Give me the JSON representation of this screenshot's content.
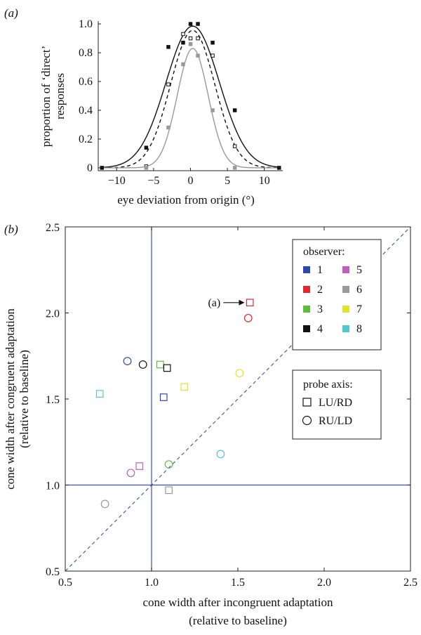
{
  "chart_data": [
    {
      "panel_label": "(a)",
      "type": "line",
      "xlabel": "eye deviation from origin (°)",
      "ylabel_lines": [
        "proportion of ‘direct’",
        "responses"
      ],
      "xlim": [
        -12.5,
        12.5
      ],
      "ylim": [
        -0.02,
        1.02
      ],
      "xticks": [
        -10,
        -5,
        0,
        5,
        10
      ],
      "xtick_labels": [
        "−10",
        "−5",
        "0",
        "5",
        "10"
      ],
      "yticks": [
        0,
        0.2,
        0.4,
        0.6,
        0.8,
        1.0
      ],
      "ytick_labels": [
        "0",
        "0.2",
        "0.4",
        "0.6",
        "0.8",
        "1.0"
      ],
      "curves": [
        {
          "style": "solid",
          "color": "#111111",
          "amplitude": 0.985,
          "mean": 0.3,
          "sd": 3.6
        },
        {
          "style": "dashed",
          "color": "#111111",
          "amplitude": 0.955,
          "mean": 0.3,
          "sd": 3.0
        },
        {
          "style": "solid",
          "color": "#999999",
          "amplitude": 0.83,
          "mean": 0.3,
          "sd": 2.1
        }
      ],
      "series": [
        {
          "marker": "filled-square",
          "color": "#111111",
          "points": [
            [
              -12,
              0
            ],
            [
              -6,
              0.14
            ],
            [
              -3,
              0.84
            ],
            [
              -1,
              0.87
            ],
            [
              0,
              1.0
            ],
            [
              1,
              1.0
            ],
            [
              3,
              0.87
            ],
            [
              6,
              0.4
            ],
            [
              12,
              0
            ]
          ]
        },
        {
          "marker": "open-square",
          "color": "#111111",
          "points": [
            [
              -6,
              0.01
            ],
            [
              -3,
              0.58
            ],
            [
              -1,
              0.93
            ],
            [
              0,
              0.9
            ],
            [
              1,
              0.9
            ],
            [
              3,
              0.78
            ],
            [
              6,
              0.15
            ]
          ]
        },
        {
          "marker": "filled-square",
          "color": "#999999",
          "points": [
            [
              -6,
              0.0
            ],
            [
              -3,
              0.28
            ],
            [
              -1,
              0.72
            ],
            [
              0,
              0.86
            ],
            [
              1,
              0.78
            ],
            [
              3,
              0.4
            ],
            [
              6,
              0.0
            ]
          ]
        }
      ]
    },
    {
      "panel_label": "(b)",
      "type": "scatter",
      "xlabel_lines": [
        "cone width after incongruent adaptation",
        "(relative to baseline)"
      ],
      "ylabel_lines": [
        "cone width after congruent adaptation",
        "(relative to baseline)"
      ],
      "xlim": [
        0.5,
        2.5
      ],
      "ylim": [
        0.5,
        2.5
      ],
      "ticks": [
        0.5,
        1.0,
        1.5,
        2.0,
        2.5
      ],
      "tick_labels": [
        "0.5",
        "1.0",
        "1.5",
        "2.0",
        "2.5"
      ],
      "reference_lines": {
        "vertical_x": 1.0,
        "horizontal_y": 1.0,
        "diagonal": true,
        "color": "#3a4fb0"
      },
      "annotation": {
        "text": "(a)",
        "target": [
          1.57,
          2.06
        ]
      },
      "points": [
        {
          "observer": 1,
          "probe": "LU/RD",
          "x": 1.07,
          "y": 1.51
        },
        {
          "observer": 1,
          "probe": "RU/LD",
          "x": 0.86,
          "y": 1.72
        },
        {
          "observer": 2,
          "probe": "LU/RD",
          "x": 1.57,
          "y": 2.06
        },
        {
          "observer": 2,
          "probe": "RU/LD",
          "x": 1.56,
          "y": 1.97
        },
        {
          "observer": 3,
          "probe": "LU/RD",
          "x": 1.05,
          "y": 1.7
        },
        {
          "observer": 3,
          "probe": "RU/LD",
          "x": 1.1,
          "y": 1.12
        },
        {
          "observer": 4,
          "probe": "LU/RD",
          "x": 1.09,
          "y": 1.68
        },
        {
          "observer": 4,
          "probe": "RU/LD",
          "x": 0.95,
          "y": 1.7
        },
        {
          "observer": 5,
          "probe": "LU/RD",
          "x": 0.93,
          "y": 1.11
        },
        {
          "observer": 5,
          "probe": "RU/LD",
          "x": 0.88,
          "y": 1.07
        },
        {
          "observer": 6,
          "probe": "LU/RD",
          "x": 1.1,
          "y": 0.97
        },
        {
          "observer": 6,
          "probe": "RU/LD",
          "x": 0.73,
          "y": 0.89
        },
        {
          "observer": 7,
          "probe": "LU/RD",
          "x": 1.19,
          "y": 1.57
        },
        {
          "observer": 7,
          "probe": "RU/LD",
          "x": 1.51,
          "y": 1.65
        },
        {
          "observer": 8,
          "probe": "LU/RD",
          "x": 0.7,
          "y": 1.53
        },
        {
          "observer": 8,
          "probe": "RU/LD",
          "x": 1.4,
          "y": 1.18
        }
      ],
      "legend_observer": {
        "title": "observer:",
        "entries": [
          {
            "label": "1",
            "color": "#2f48b0"
          },
          {
            "label": "2",
            "color": "#e4262c"
          },
          {
            "label": "3",
            "color": "#5cbf3c"
          },
          {
            "label": "4",
            "color": "#111111"
          },
          {
            "label": "5",
            "color": "#c45cc0"
          },
          {
            "label": "6",
            "color": "#9a9a9a"
          },
          {
            "label": "7",
            "color": "#e2e22a"
          },
          {
            "label": "8",
            "color": "#4fc8d4"
          }
        ],
        "placement": "top-right"
      },
      "legend_probe": {
        "title": "probe axis:",
        "entries": [
          {
            "label": "LU/RD",
            "marker": "square"
          },
          {
            "label": "RU/LD",
            "marker": "circle"
          }
        ],
        "placement": "right"
      }
    }
  ]
}
